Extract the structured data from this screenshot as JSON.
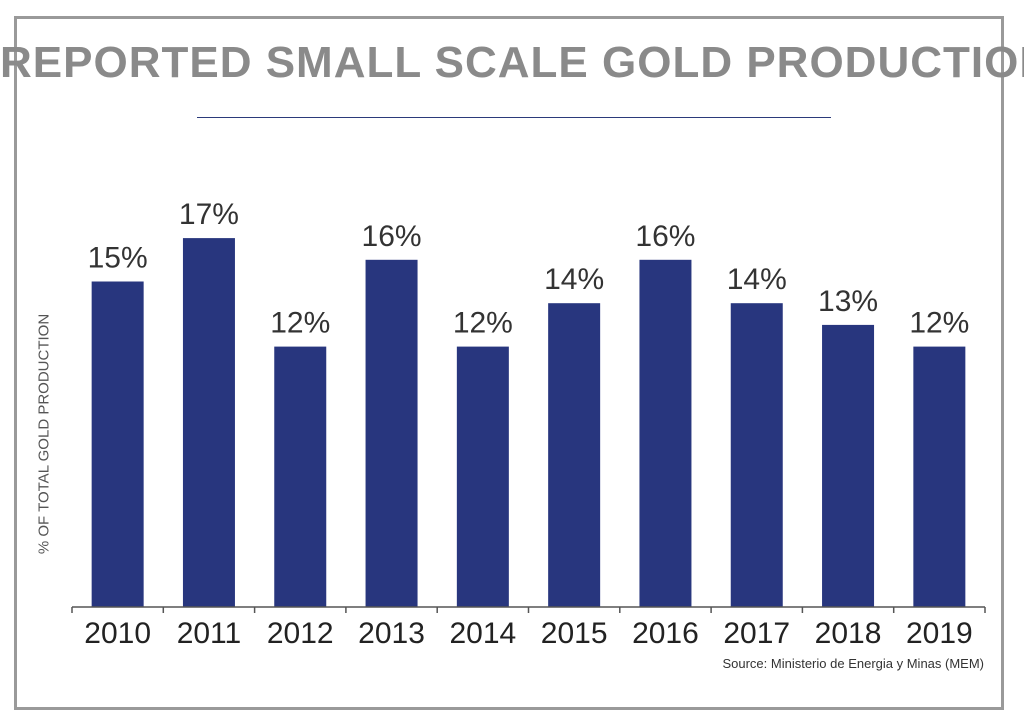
{
  "chart_data": {
    "type": "bar",
    "title": "REPORTED SMALL SCALE GOLD PRODUCTION",
    "xlabel": "",
    "ylabel": "% OF TOTAL GOLD PRODUCTION",
    "categories": [
      "2010",
      "2011",
      "2012",
      "2013",
      "2014",
      "2015",
      "2016",
      "2017",
      "2018",
      "2019"
    ],
    "values": [
      15,
      17,
      12,
      16,
      12,
      14,
      16,
      14,
      13,
      12
    ],
    "data_labels": [
      "15%",
      "17%",
      "12%",
      "16%",
      "12%",
      "14%",
      "16%",
      "14%",
      "13%",
      "12%"
    ],
    "ylim": [
      0,
      21
    ],
    "grid": false,
    "legend": "none",
    "bar_color": "#28367e",
    "source": "Source: Ministerio de Energia y Minas (MEM)"
  }
}
